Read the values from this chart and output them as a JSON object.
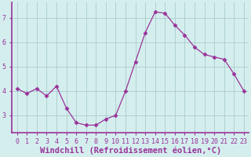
{
  "x": [
    0,
    1,
    2,
    3,
    4,
    5,
    6,
    7,
    8,
    9,
    10,
    11,
    12,
    13,
    14,
    15,
    16,
    17,
    18,
    19,
    20,
    21,
    22,
    23
  ],
  "y": [
    4.1,
    3.9,
    4.1,
    3.8,
    4.2,
    3.3,
    2.7,
    2.6,
    2.6,
    2.85,
    3.0,
    4.0,
    5.2,
    6.4,
    7.25,
    7.2,
    6.7,
    6.3,
    5.8,
    5.5,
    5.4,
    5.3,
    4.7,
    4.0
  ],
  "line_color": "#993399",
  "marker": "D",
  "marker_size": 2.5,
  "bg_color": "#d4eeee",
  "grid_color": "#aacccc",
  "xlabel": "Windchill (Refroidissement éolien,°C)",
  "xlim": [
    -0.5,
    23.5
  ],
  "ylim": [
    2.3,
    7.65
  ],
  "yticks": [
    3,
    4,
    5,
    6,
    7
  ],
  "xticks": [
    0,
    1,
    2,
    3,
    4,
    5,
    6,
    7,
    8,
    9,
    10,
    11,
    12,
    13,
    14,
    15,
    16,
    17,
    18,
    19,
    20,
    21,
    22,
    23
  ],
  "tick_fontsize": 6,
  "xlabel_fontsize": 7.5,
  "spine_color": "#993399",
  "axis_bottom_color": "#993399"
}
